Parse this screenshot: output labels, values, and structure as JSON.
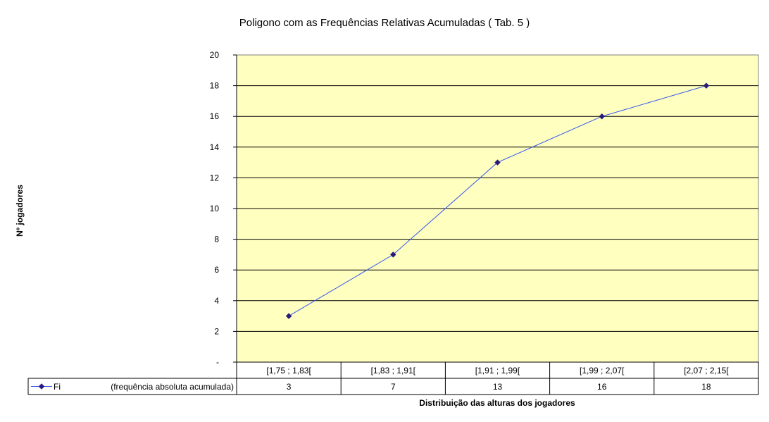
{
  "chart_data": {
    "type": "line",
    "title": "Poligono com as Frequências Relativas Acumuladas ( Tab. 5 )",
    "xlabel": "Distribuição das alturas dos jogadores",
    "ylabel": "Nº jogadores",
    "categories": [
      "[1,75 ; 1,83[",
      "[1,83 ; 1,91[",
      "[1,91 ; 1,99[",
      "[1,99 ; 2,07[",
      "[2,07 ; 2,15["
    ],
    "series": [
      {
        "name": "Fi",
        "description": "(frequência absoluta acumulada)",
        "values": [
          3,
          7,
          13,
          16,
          18
        ],
        "color": "#3355ee",
        "marker_color": "#2a1a7a"
      }
    ],
    "ylim": [
      0,
      20
    ],
    "yticks": [
      0,
      2,
      4,
      6,
      8,
      10,
      12,
      14,
      16,
      18,
      20
    ],
    "ytick_labels": [
      "-",
      "2",
      "4",
      "6",
      "8",
      "10",
      "12",
      "14",
      "16",
      "18",
      "20"
    ],
    "grid": true,
    "data_table": true,
    "plot_background": "#ffffc0"
  }
}
